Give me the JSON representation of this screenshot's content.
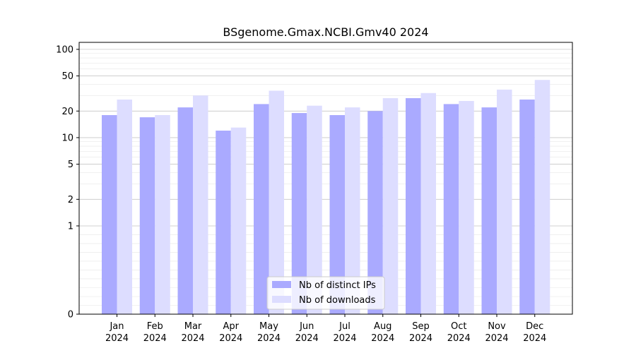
{
  "chart_data": {
    "type": "bar",
    "title": "BSgenome.Gmax.NCBI.Gmv40 2024",
    "xlabel": "",
    "ylabel": "",
    "yscale": "symlog",
    "ylim": [
      0,
      120
    ],
    "yticks": [
      0,
      1,
      2,
      5,
      10,
      20,
      50,
      100
    ],
    "grid": true,
    "legend_position": "bottom-center",
    "categories": [
      "Jan\n2024",
      "Feb\n2024",
      "Mar\n2024",
      "Apr\n2024",
      "May\n2024",
      "Jun\n2024",
      "Jul\n2024",
      "Aug\n2024",
      "Sep\n2024",
      "Oct\n2024",
      "Nov\n2024",
      "Dec\n2024"
    ],
    "series": [
      {
        "name": "Nb of distinct IPs",
        "color": "#aaaaff",
        "values": [
          18,
          17,
          22,
          12,
          24,
          19,
          18,
          20,
          28,
          24,
          22,
          27
        ]
      },
      {
        "name": "Nb of downloads",
        "color": "#ddddff",
        "values": [
          27,
          18,
          30,
          13,
          34,
          23,
          22,
          28,
          32,
          26,
          35,
          45
        ]
      }
    ]
  }
}
